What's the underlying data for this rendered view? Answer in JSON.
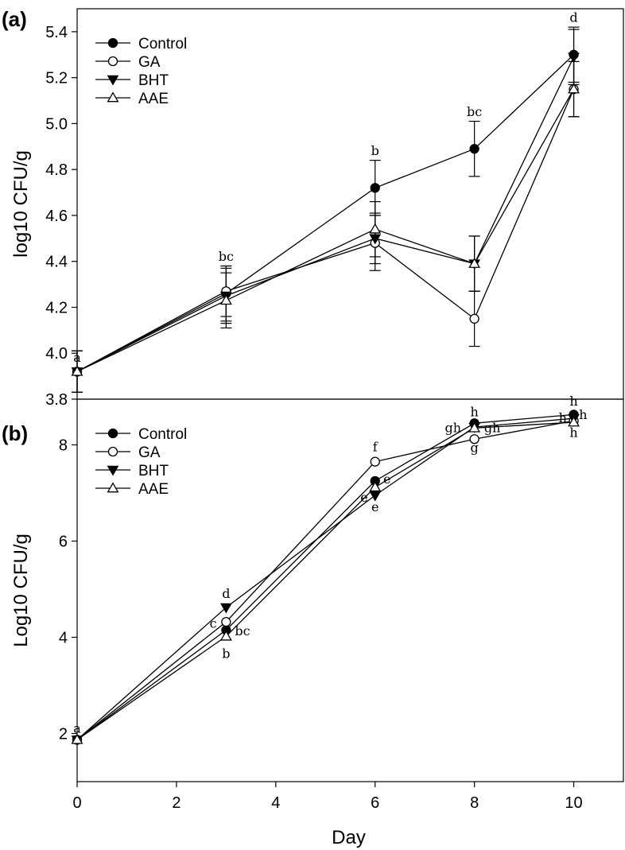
{
  "chart_data": [
    {
      "panel_label": "(a)",
      "type": "line",
      "ylabel": "log10 CFU/g",
      "xlabel": "",
      "x": [
        0,
        3,
        6,
        8,
        10
      ],
      "xlim": [
        0,
        11
      ],
      "ylim": [
        3.8,
        5.5
      ],
      "yticks": [
        3.8,
        4.0,
        4.2,
        4.4,
        4.6,
        4.8,
        5.0,
        5.2,
        5.4
      ],
      "ytick_labels": [
        "3.8",
        "4.0",
        "4.2",
        "4.4",
        "4.6",
        "4.8",
        "5.0",
        "5.2",
        "5.4"
      ],
      "legend_position": "top-left",
      "series": [
        {
          "name": "Control",
          "marker": "filled-circle",
          "values": [
            3.92,
            4.26,
            4.72,
            4.89,
            5.3
          ],
          "errors": [
            0.09,
            0.12,
            0.12,
            0.12,
            0.12
          ]
        },
        {
          "name": "GA",
          "marker": "open-circle",
          "values": [
            3.92,
            4.27,
            4.48,
            4.15,
            5.15
          ],
          "errors": [
            0.09,
            0.11,
            0.12,
            0.12,
            0.12
          ]
        },
        {
          "name": "BHT",
          "marker": "filled-triangle-down",
          "values": [
            3.92,
            4.25,
            4.5,
            4.39,
            5.29
          ],
          "errors": [
            0.09,
            0.12,
            0.11,
            0.12,
            0.12
          ]
        },
        {
          "name": "AAE",
          "marker": "open-triangle-up",
          "values": [
            3.92,
            4.23,
            4.54,
            4.39,
            5.15
          ],
          "errors": [
            0.09,
            0.12,
            0.12,
            0.12,
            0.12
          ]
        }
      ],
      "annotations": [
        {
          "text": "a",
          "x": 0,
          "y": 3.98
        },
        {
          "text": "bc",
          "x": 3,
          "y": 4.42
        },
        {
          "text": "b",
          "x": 6,
          "y": 4.88
        },
        {
          "text": "bc",
          "x": 8,
          "y": 5.05
        },
        {
          "text": "d",
          "x": 10,
          "y": 5.46
        }
      ]
    },
    {
      "panel_label": "(b)",
      "type": "line",
      "ylabel": "Log10 CFU/g",
      "xlabel": "Day",
      "x": [
        0,
        3,
        6,
        8,
        10
      ],
      "xlim": [
        0,
        11
      ],
      "ylim": [
        1,
        8.95
      ],
      "yticks": [
        2,
        4,
        6,
        8
      ],
      "ytick_labels": [
        "2",
        "4",
        "6",
        "8"
      ],
      "xticks": [
        0,
        2,
        4,
        6,
        8,
        10
      ],
      "xtick_labels": [
        "0",
        "2",
        "4",
        "6",
        "8",
        "10"
      ],
      "legend_position": "top-left",
      "series": [
        {
          "name": "Control",
          "marker": "filled-circle",
          "values": [
            1.87,
            4.15,
            7.25,
            8.45,
            8.63
          ]
        },
        {
          "name": "GA",
          "marker": "open-circle",
          "values": [
            1.87,
            4.32,
            7.65,
            8.12,
            8.5
          ]
        },
        {
          "name": "BHT",
          "marker": "filled-triangle-down",
          "values": [
            1.87,
            4.62,
            6.95,
            8.37,
            8.55
          ]
        },
        {
          "name": "AAE",
          "marker": "open-triangle-up",
          "values": [
            1.87,
            4.02,
            7.12,
            8.35,
            8.47
          ]
        }
      ],
      "annotations": [
        {
          "text": "a",
          "x": 0,
          "y": 2.1
        },
        {
          "text": "d",
          "x": 3,
          "y": 4.9
        },
        {
          "text": "c",
          "x": 2.74,
          "y": 4.28
        },
        {
          "text": "bc",
          "x": 3.33,
          "y": 4.12
        },
        {
          "text": "b",
          "x": 3,
          "y": 3.65
        },
        {
          "text": "f",
          "x": 6,
          "y": 7.95
        },
        {
          "text": "e",
          "x": 6.24,
          "y": 7.28
        },
        {
          "text": "e",
          "x": 5.78,
          "y": 6.9
        },
        {
          "text": "e",
          "x": 6,
          "y": 6.7
        },
        {
          "text": "h",
          "x": 8,
          "y": 8.68
        },
        {
          "text": "gh",
          "x": 7.57,
          "y": 8.35
        },
        {
          "text": "gh",
          "x": 8.36,
          "y": 8.35
        },
        {
          "text": "g",
          "x": 8,
          "y": 7.93
        },
        {
          "text": "h",
          "x": 10,
          "y": 8.9
        },
        {
          "text": "h",
          "x": 9.78,
          "y": 8.55
        },
        {
          "text": "h",
          "x": 10.19,
          "y": 8.62
        },
        {
          "text": "h",
          "x": 10,
          "y": 8.25
        }
      ]
    }
  ]
}
